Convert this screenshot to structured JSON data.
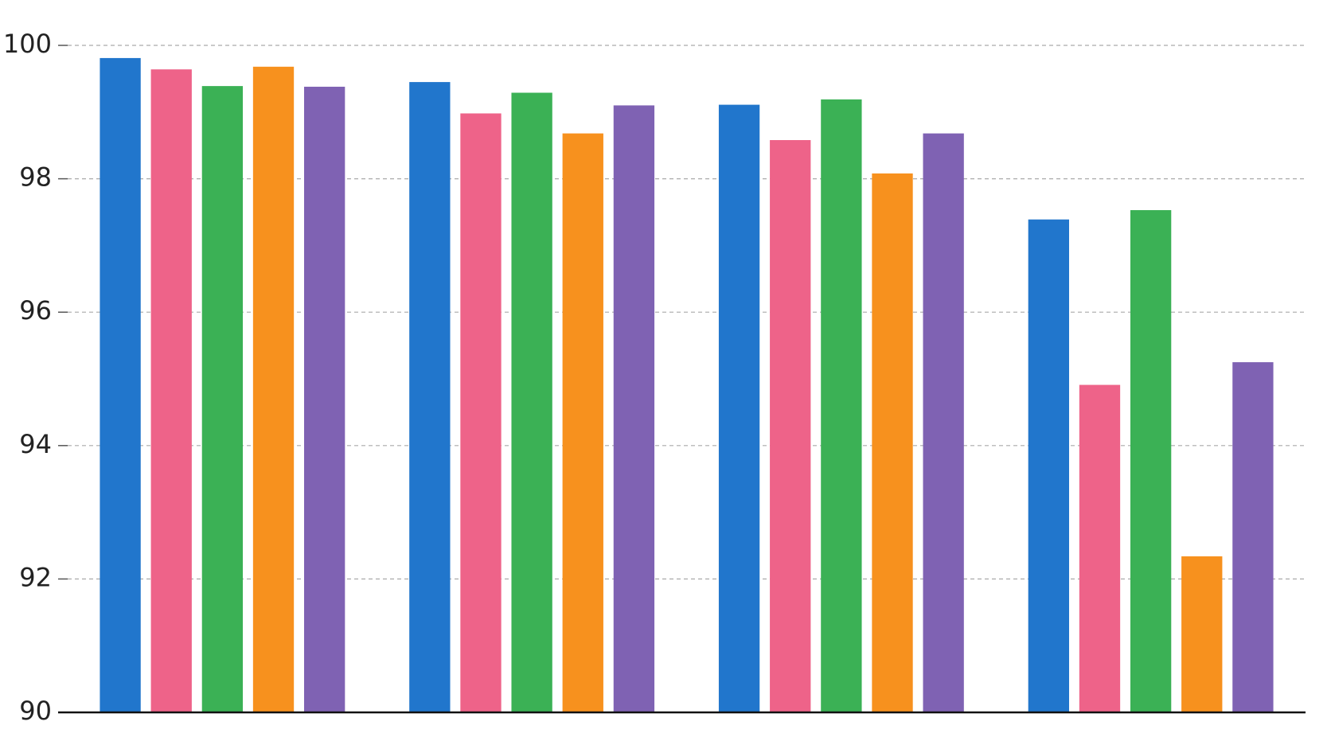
{
  "chart_data": {
    "type": "bar",
    "categories": [
      null,
      null,
      null,
      null
    ],
    "series": [
      {
        "color": "#2176cc",
        "values": [
          99.81,
          99.45,
          99.11,
          97.39
        ]
      },
      {
        "color": "#ee6389",
        "values": [
          99.64,
          98.98,
          98.58,
          94.91
        ]
      },
      {
        "color": "#3bb155",
        "values": [
          99.39,
          99.29,
          99.19,
          97.53
        ]
      },
      {
        "color": "#f7911e",
        "values": [
          99.68,
          98.68,
          98.08,
          92.34
        ]
      },
      {
        "color": "#7f62b3",
        "values": [
          99.38,
          99.1,
          98.68,
          95.25
        ]
      }
    ],
    "ylim": [
      90,
      100
    ],
    "yticks": [
      90,
      92,
      94,
      96,
      98,
      100
    ],
    "grid": true
  }
}
